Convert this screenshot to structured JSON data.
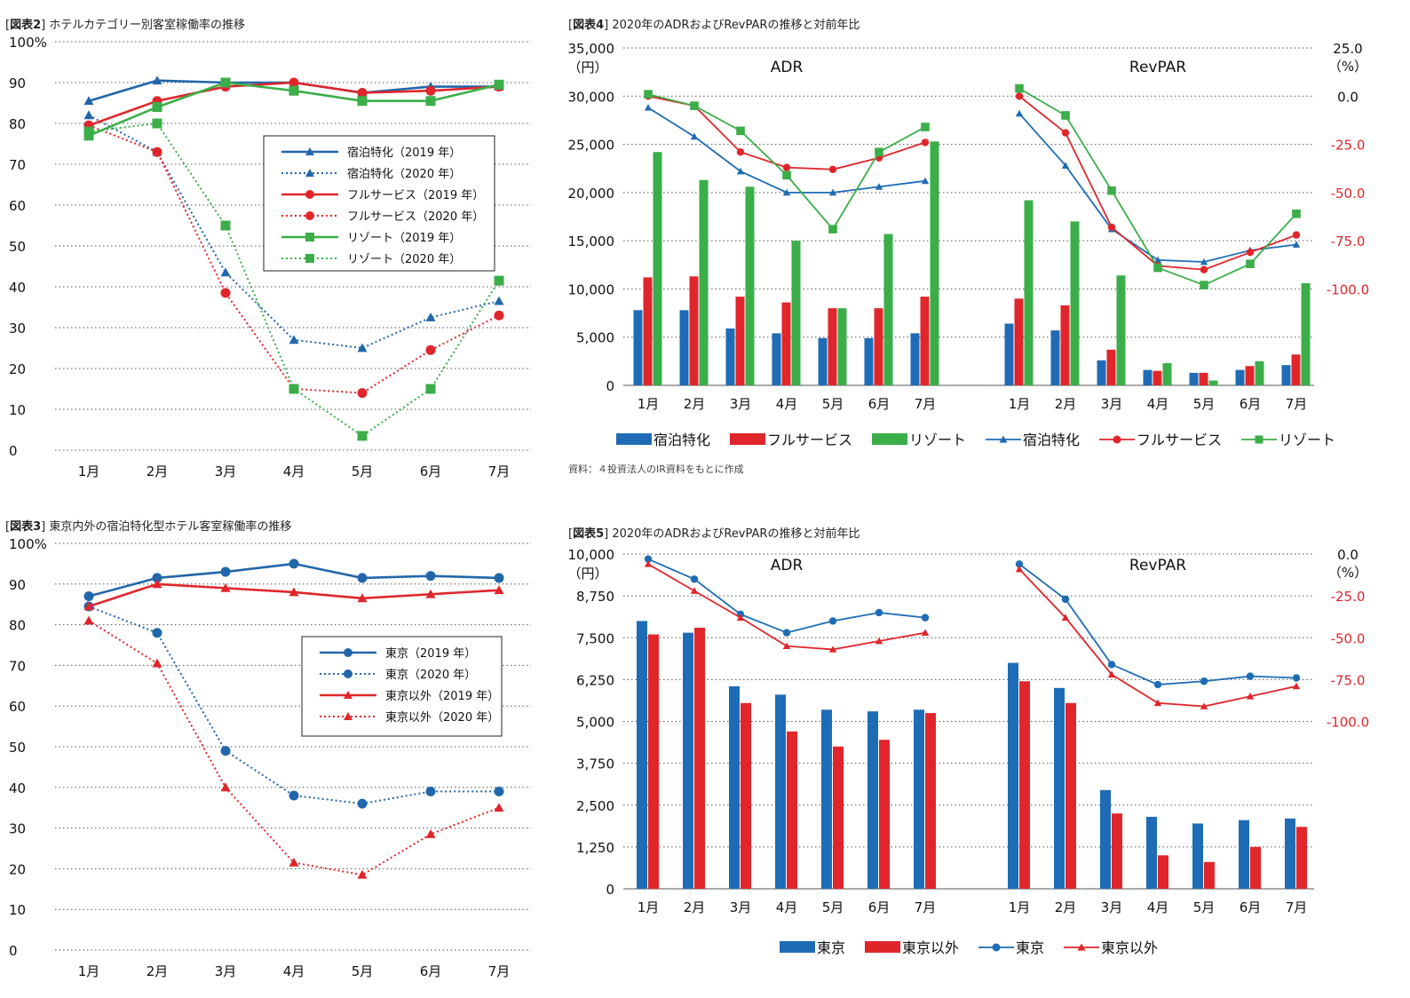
{
  "charts": {
    "fig2": {
      "tag": "図表2",
      "title": "ホテルカテゴリー別客室稼働率の推移",
      "chart_data": {
        "type": "line",
        "categories": [
          "1月",
          "2月",
          "3月",
          "4月",
          "5月",
          "6月",
          "7月"
        ],
        "yticks": [
          "100%",
          "90",
          "80",
          "70",
          "60",
          "50",
          "40",
          "30",
          "20",
          "10",
          "0"
        ],
        "ylim": [
          0,
          100
        ],
        "grid": true,
        "legend_position": "center-right",
        "series": [
          {
            "name": "宿泊特化（2019 年）",
            "color": "#2266aa",
            "dash": false,
            "marker": "triangle",
            "values": [
              85.5,
              90.5,
              90.0,
              90.0,
              87.5,
              89.0,
              89.0
            ]
          },
          {
            "name": "宿泊特化（2020 年）",
            "color": "#2266aa",
            "dash": true,
            "marker": "triangle",
            "values": [
              82.0,
              73.0,
              43.5,
              27.0,
              25.0,
              32.5,
              36.5
            ]
          },
          {
            "name": "フルサービス（2019 年）",
            "color": "#e0262b",
            "dash": false,
            "marker": "circle",
            "values": [
              79.5,
              85.5,
              89.0,
              90.0,
              87.5,
              88.0,
              89.0
            ]
          },
          {
            "name": "フルサービス（2020 年）",
            "color": "#e0262b",
            "dash": true,
            "marker": "circle",
            "values": [
              79.5,
              73.0,
              38.5,
              15.0,
              14.0,
              24.5,
              33.0
            ]
          },
          {
            "name": "リゾート（2019 年）",
            "color": "#3bae49",
            "dash": false,
            "marker": "square",
            "values": [
              77.0,
              84.0,
              90.0,
              88.0,
              85.5,
              85.5,
              89.5
            ]
          },
          {
            "name": "リゾート（2020 年）",
            "color": "#3bae49",
            "dash": true,
            "marker": "square",
            "values": [
              78.0,
              80.0,
              55.0,
              15.0,
              3.5,
              15.0,
              41.5
            ]
          }
        ]
      }
    },
    "fig3": {
      "tag": "図表3",
      "title": "東京内外の宿泊特化型ホテル客室稼働率の推移",
      "chart_data": {
        "type": "line",
        "categories": [
          "1月",
          "2月",
          "3月",
          "4月",
          "5月",
          "6月",
          "7月"
        ],
        "yticks": [
          "100%",
          "90",
          "80",
          "70",
          "60",
          "50",
          "40",
          "30",
          "20",
          "10",
          "0"
        ],
        "ylim": [
          0,
          100
        ],
        "grid": true,
        "legend_position": "center-right",
        "series": [
          {
            "name": "東京（2019 年）",
            "color": "#2266aa",
            "dash": false,
            "marker": "circle",
            "values": [
              87.0,
              91.5,
              93.0,
              95.0,
              91.5,
              92.0,
              91.5
            ]
          },
          {
            "name": "東京（2020 年）",
            "color": "#2266aa",
            "dash": true,
            "marker": "circle",
            "values": [
              84.5,
              78.0,
              49.0,
              38.0,
              36.0,
              39.0,
              39.0
            ]
          },
          {
            "name": "東京以外（2019 年）",
            "color": "#e0262b",
            "dash": false,
            "marker": "triangle",
            "values": [
              84.5,
              90.0,
              89.0,
              88.0,
              86.5,
              87.5,
              88.5
            ]
          },
          {
            "name": "東京以外（2020 年）",
            "color": "#e0262b",
            "dash": true,
            "marker": "triangle",
            "values": [
              81.0,
              70.5,
              40.0,
              21.5,
              18.5,
              28.5,
              35.0
            ]
          }
        ]
      }
    },
    "fig4": {
      "tag": "図表4",
      "title": "2020年のADRおよびRevPARの推移と対前年比",
      "source": "資料：４投資法人のIR資料をもとに作成",
      "chart_data": {
        "type": "bar",
        "panel_labels": [
          "ADR",
          "RevPAR"
        ],
        "categories": [
          "1月",
          "2月",
          "3月",
          "4月",
          "5月",
          "6月",
          "7月"
        ],
        "left_axis": {
          "ticks": [
            "35,000",
            "30,000",
            "25,000",
            "20,000",
            "15,000",
            "10,000",
            "5,000",
            "0"
          ],
          "unit": "（円）",
          "ylim": [
            0,
            35000
          ]
        },
        "right_axis": {
          "ticks": [
            "25.0",
            "0.0",
            "-25.0",
            "-50.0",
            "-75.0",
            "-100.0"
          ],
          "unit": "（%）",
          "ylim": [
            -150,
            25
          ]
        },
        "grid": true,
        "bar_series": [
          {
            "name": "宿泊特化",
            "color": "#1e6cb5",
            "adr": [
              7800,
              7800,
              5900,
              5400,
              4900,
              4900,
              5400
            ],
            "revpar": [
              6400,
              5700,
              2600,
              1600,
              1300,
              1600,
              2100
            ]
          },
          {
            "name": "フルサービス",
            "color": "#e0262b",
            "adr": [
              11200,
              11300,
              9200,
              8600,
              8000,
              8000,
              9200
            ],
            "revpar": [
              9000,
              8300,
              3700,
              1500,
              1300,
              2000,
              3200
            ]
          },
          {
            "name": "リゾート",
            "color": "#3bae49",
            "adr": [
              24200,
              21300,
              20600,
              15000,
              8000,
              15700,
              25300
            ],
            "revpar": [
              19200,
              17000,
              11400,
              2300,
              500,
              2500,
              10600
            ]
          }
        ],
        "line_series": [
          {
            "name": "宿泊特化",
            "color": "#1e6cb5",
            "marker": "triangle",
            "adr": [
              -6,
              -21,
              -39,
              -50,
              -50,
              -47,
              -44
            ],
            "revpar": [
              -9,
              -36,
              -69,
              -85,
              -86,
              -80,
              -77
            ]
          },
          {
            "name": "フルサービス",
            "color": "#e0262b",
            "marker": "circle",
            "adr": [
              0,
              -5,
              -29,
              -37,
              -38,
              -32,
              -24
            ],
            "revpar": [
              0,
              -19,
              -68,
              -88,
              -90,
              -81,
              -72
            ]
          },
          {
            "name": "リゾート",
            "color": "#3bae49",
            "marker": "square",
            "adr": [
              1,
              -5,
              -18,
              -41,
              -69,
              -29,
              -16
            ],
            "revpar": [
              4,
              -10,
              -49,
              -89,
              -98,
              -87,
              -61
            ]
          }
        ],
        "legend_position": "bottom"
      }
    },
    "fig5": {
      "tag": "図表5",
      "title": "2020年のADRおよびRevPARの推移と対前年比",
      "chart_data": {
        "type": "bar",
        "panel_labels": [
          "ADR",
          "RevPAR"
        ],
        "categories": [
          "1月",
          "2月",
          "3月",
          "4月",
          "5月",
          "6月",
          "7月"
        ],
        "left_axis": {
          "ticks": [
            "10,000",
            "8,750",
            "7,500",
            "6,250",
            "5,000",
            "3,750",
            "2,500",
            "1,250",
            "0"
          ],
          "unit": "（円）",
          "ylim": [
            0,
            10000
          ]
        },
        "right_axis": {
          "ticks": [
            "0.0",
            "-25.0",
            "-50.0",
            "-75.0",
            "-100.0"
          ],
          "unit": "（%）",
          "ylim": [
            -200,
            0
          ]
        },
        "grid": true,
        "bar_series": [
          {
            "name": "東京",
            "color": "#1e6cb5",
            "adr": [
              8000,
              7650,
              6050,
              5800,
              5350,
              5300,
              5350
            ],
            "revpar": [
              6750,
              6000,
              2950,
              2150,
              1950,
              2050,
              2100
            ]
          },
          {
            "name": "東京以外",
            "color": "#e0262b",
            "adr": [
              7600,
              7800,
              5550,
              4700,
              4250,
              4450,
              5250
            ],
            "revpar": [
              6200,
              5550,
              2250,
              1000,
              800,
              1250,
              1850
            ]
          }
        ],
        "line_series": [
          {
            "name": "東京",
            "color": "#1e6cb5",
            "marker": "circle",
            "adr": [
              -3,
              -15,
              -36,
              -47,
              -40,
              -35,
              -38
            ],
            "revpar": [
              -6,
              -27,
              -66,
              -78,
              -76,
              -73,
              -74
            ]
          },
          {
            "name": "東京以外",
            "color": "#e0262b",
            "marker": "triangle",
            "adr": [
              -6,
              -22,
              -38,
              -55,
              -57,
              -52,
              -47
            ],
            "revpar": [
              -9,
              -38,
              -72,
              -89,
              -91,
              -85,
              -79
            ]
          }
        ],
        "legend_position": "bottom"
      }
    }
  }
}
